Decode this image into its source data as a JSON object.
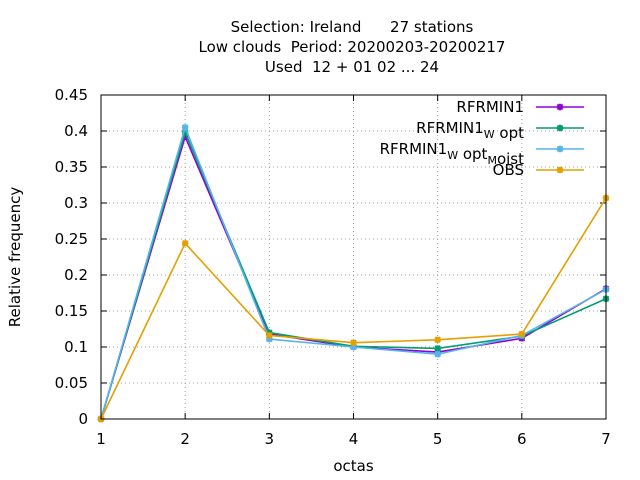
{
  "chart_data": {
    "type": "line",
    "title_lines": [
      "Selection: Ireland      27 stations",
      "Low clouds  Period: 20200203-20200217",
      "Used  12 + 01 02 ... 24"
    ],
    "xlabel": "octas",
    "ylabel": "Relative frequency",
    "x": [
      1,
      2,
      3,
      4,
      5,
      6,
      7
    ],
    "xlim": [
      1,
      7
    ],
    "ylim": [
      0,
      0.45
    ],
    "x_ticks": [
      "1",
      "2",
      "3",
      "4",
      "5",
      "6",
      "7"
    ],
    "y_ticks": [
      "0",
      "0.05",
      "0.1",
      "0.15",
      "0.2",
      "0.25",
      "0.3",
      "0.35",
      "0.4",
      "0.45"
    ],
    "grid": true,
    "legend_position": "top-right",
    "series": [
      {
        "key": "rfrmin1",
        "name": "RFRMIN1",
        "legend_main": "RFRMIN1",
        "legend_sub1": "",
        "legend_mid": "",
        "legend_sub2": "",
        "legend_end": "",
        "color": "#9400d3",
        "values": [
          0.0,
          0.392,
          0.118,
          0.1,
          0.093,
          0.112,
          0.181
        ]
      },
      {
        "key": "rfrmin1_wopt",
        "name": "RFRMIN1_W opt",
        "legend_main": "RFRMIN1",
        "legend_sub1": "W",
        "legend_mid": " opt",
        "legend_sub2": "",
        "legend_end": "",
        "color": "#009e73",
        "values": [
          0.0,
          0.398,
          0.12,
          0.101,
          0.098,
          0.115,
          0.167
        ]
      },
      {
        "key": "rfrmin1_wopt_moist",
        "name": "RFRMIN1_W opt_M oist",
        "legend_main": "RFRMIN1",
        "legend_sub1": "W",
        "legend_mid": " opt",
        "legend_sub2": "M",
        "legend_end": "oist",
        "color": "#56b4e9",
        "values": [
          0.0,
          0.405,
          0.111,
          0.1,
          0.09,
          0.116,
          0.18
        ]
      },
      {
        "key": "obs",
        "name": "OBS",
        "legend_main": "OBS",
        "legend_sub1": "",
        "legend_mid": "",
        "legend_sub2": "",
        "legend_end": "",
        "color": "#e69f00",
        "values": [
          0.0,
          0.244,
          0.116,
          0.106,
          0.11,
          0.118,
          0.307
        ]
      }
    ]
  }
}
